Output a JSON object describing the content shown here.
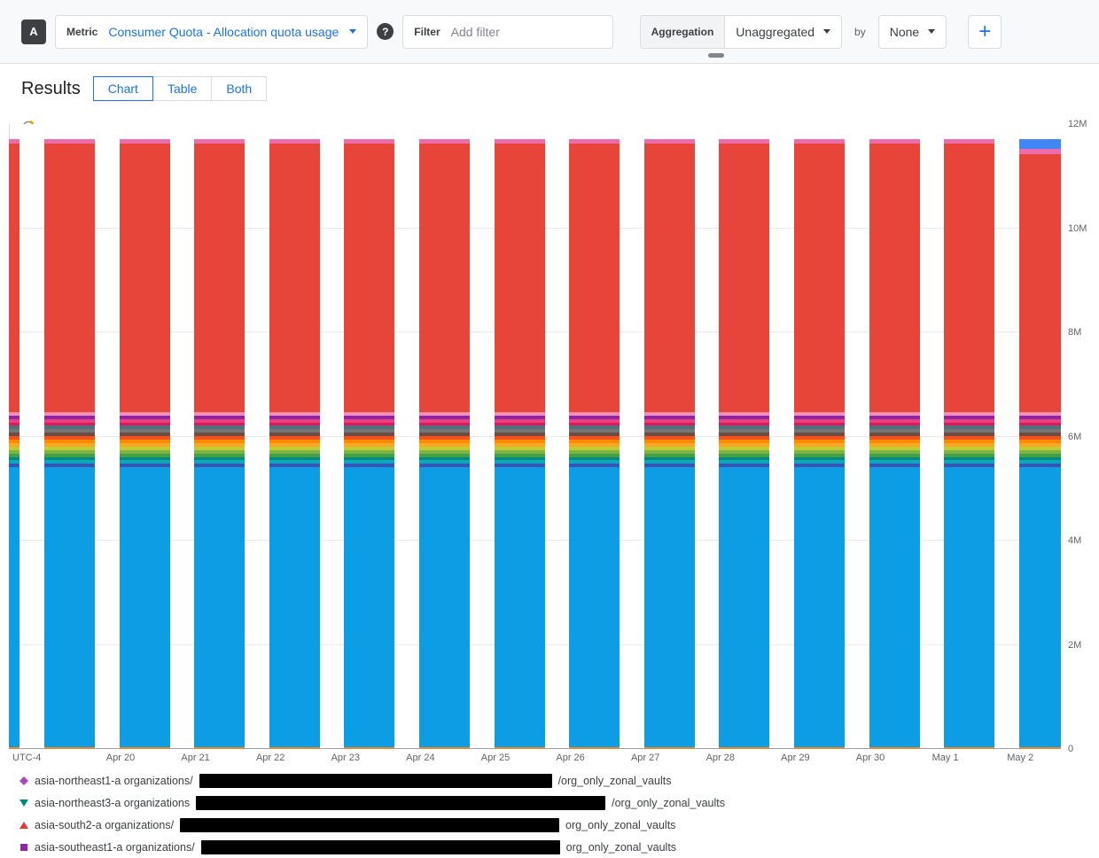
{
  "toolbar": {
    "query_badge": "A",
    "metric": {
      "label": "Metric",
      "value": "Consumer Quota - Allocation quota usage"
    },
    "help_icon": "?",
    "filter": {
      "label": "Filter",
      "placeholder": "Add filter"
    },
    "aggregation": {
      "label": "Aggregation",
      "value": "Unaggregated",
      "by_label": "by",
      "by_value": "None"
    },
    "add_query_label": "+"
  },
  "results": {
    "title": "Results",
    "tabs": [
      {
        "label": "Chart",
        "active": true
      },
      {
        "label": "Table",
        "active": false
      },
      {
        "label": "Both",
        "active": false
      }
    ]
  },
  "chart_data": {
    "type": "bar",
    "stacked": true,
    "title": "Consumer Quota - Allocation quota usage",
    "timezone_label": "UTC-4",
    "x_tick_labels": [
      "Apr 20",
      "Apr 21",
      "Apr 22",
      "Apr 23",
      "Apr 24",
      "Apr 25",
      "Apr 26",
      "Apr 27",
      "Apr 28",
      "Apr 29",
      "Apr 30",
      "May 1",
      "May 2"
    ],
    "ylim": [
      0,
      12000000
    ],
    "y_ticks": [
      {
        "value": 0,
        "label": "0"
      },
      {
        "value": 2000000,
        "label": "2M"
      },
      {
        "value": 4000000,
        "label": "4M"
      },
      {
        "value": 6000000,
        "label": "6M"
      },
      {
        "value": 8000000,
        "label": "8M"
      },
      {
        "value": 10000000,
        "label": "10M"
      },
      {
        "value": 12000000,
        "label": "12M"
      }
    ],
    "bar_count": 15,
    "grid": true,
    "legend_position": "bottom",
    "stack_segments": [
      {
        "name": "base-sliver",
        "color": "#f5861f",
        "value": 40000
      },
      {
        "name": "primary-blue",
        "color": "#0c9de4",
        "value": 5370000
      },
      {
        "name": "stripe-band",
        "value": 1060000,
        "colors": [
          "#3f51b5",
          "#00acc1",
          "#00897b",
          "#43a047",
          "#7cb342",
          "#c0ca33",
          "#f9a825",
          "#fb8c00",
          "#f4511e",
          "#6d4c41",
          "#757575",
          "#546e7a",
          "#d81b60",
          "#ec407a",
          "#8e24aa",
          "#f48fb1"
        ]
      },
      {
        "name": "primary-red",
        "color": "#e8453a",
        "value": 5150000
      },
      {
        "name": "top-pink",
        "color": "#ef6cab",
        "value": 90000
      }
    ],
    "last_bar_top_segment": {
      "name": "top-blue",
      "color": "#4285f4",
      "value": 190000,
      "replaces": "primary-red"
    }
  },
  "legend": {
    "items": [
      {
        "marker": "diamond",
        "color": "#ab47bc",
        "text_before": "asia-northeast1-a organizations/",
        "redacted": true,
        "redaction_width": 398,
        "text_after": "/org_only_zonal_vaults"
      },
      {
        "marker": "triangle-down",
        "color": "#00897b",
        "text_before": "asia-northeast3-a organizations",
        "redacted": true,
        "redaction_width": 462,
        "text_after": "/org_only_zonal_vaults"
      },
      {
        "marker": "triangle-up",
        "color": "#e53935",
        "text_before": "asia-south2-a organizations/",
        "redacted": true,
        "redaction_width": 428,
        "text_after": "org_only_zonal_vaults"
      },
      {
        "marker": "square",
        "color": "#8e24aa",
        "text_before": "asia-southeast1-a organizations/",
        "redacted": true,
        "redaction_width": 405,
        "text_after": "org_only_zonal_vaults"
      }
    ]
  }
}
